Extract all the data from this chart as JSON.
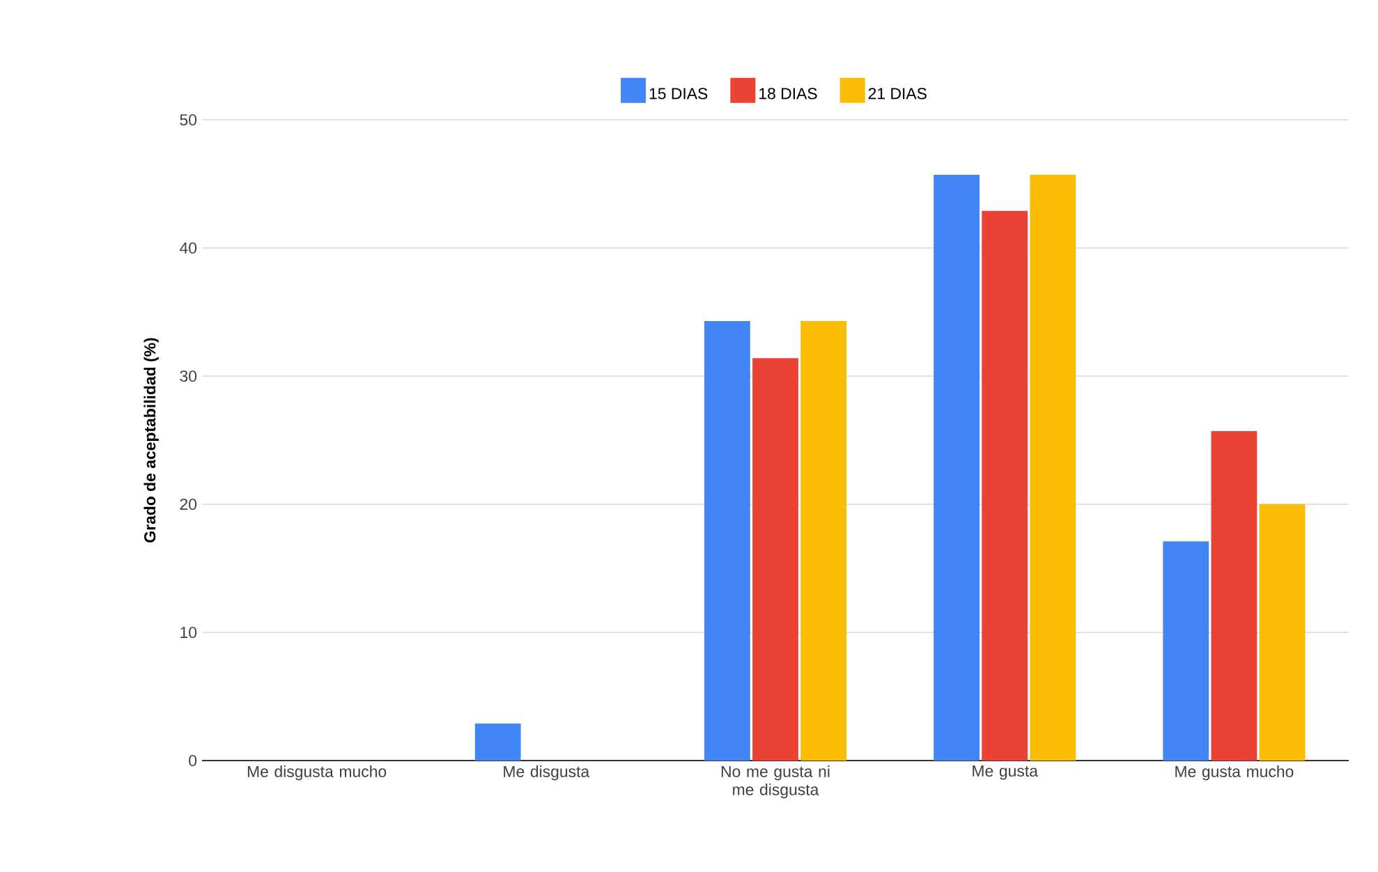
{
  "chart_data": {
    "type": "bar",
    "ylabel": "Grado de aceptabilidad (%)",
    "categories": [
      "Me disgusta mucho",
      "Me disgusta",
      "No me gusta ni me disgusta",
      "Me gusta",
      "Me gusta mucho"
    ],
    "series": [
      {
        "name": "15 DIAS",
        "color": "#4285f4",
        "values": [
          0,
          2.9,
          34.3,
          45.7,
          17.1
        ]
      },
      {
        "name": "18 DIAS",
        "color": "#ea4335",
        "values": [
          0,
          0,
          31.4,
          42.9,
          25.7
        ]
      },
      {
        "name": "21 DIAS",
        "color": "#fbbc04",
        "values": [
          0,
          0,
          34.3,
          45.7,
          20
        ]
      }
    ],
    "ylim": [
      0,
      50
    ],
    "yticks": [
      0,
      10,
      20,
      30,
      40,
      50
    ],
    "grid": "y",
    "legend": "top"
  }
}
